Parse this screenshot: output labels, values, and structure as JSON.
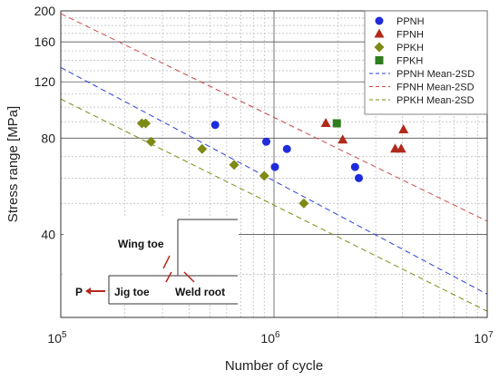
{
  "chart_data": {
    "type": "scatter",
    "x_scale": "log",
    "y_scale": "log",
    "xlim": [
      100000,
      10000000
    ],
    "ylim": [
      22,
      200
    ],
    "xlabel": "Number of cycle",
    "ylabel": "Stress range [MPa]",
    "x_ticks": [
      {
        "value": 100000,
        "base": "10",
        "exp": "5"
      },
      {
        "value": 1000000,
        "base": "10",
        "exp": "6"
      },
      {
        "value": 10000000,
        "base": "10",
        "exp": "7"
      }
    ],
    "y_ticks": [
      {
        "value": 40,
        "label": "40"
      },
      {
        "value": 80,
        "label": "80"
      },
      {
        "value": 120,
        "label": "120"
      },
      {
        "value": 160,
        "label": "160"
      },
      {
        "value": 200,
        "label": "200"
      }
    ],
    "grid": true,
    "legend_position": "top-right",
    "series": [
      {
        "name": "PPNH",
        "marker": "circle",
        "color": "#1f2bdc",
        "x": [
          530000,
          920000,
          1010000,
          1150000,
          2400000,
          2500000
        ],
        "y": [
          88,
          78,
          65,
          74,
          65,
          60
        ]
      },
      {
        "name": "FPNH",
        "marker": "triangle",
        "color": "#b22a1a",
        "x": [
          1750000,
          2100000,
          3700000,
          3950000,
          4050000
        ],
        "y": [
          89,
          79,
          74,
          74,
          85
        ]
      },
      {
        "name": "PPKH",
        "marker": "diamond",
        "color": "#7e8a16",
        "x": [
          240000,
          250000,
          265000,
          460000,
          650000,
          900000,
          1380000
        ],
        "y": [
          89,
          89,
          78,
          74,
          66,
          61,
          50
        ]
      },
      {
        "name": "FPKH",
        "marker": "square",
        "color": "#2e7d1e",
        "x": [
          1970000
        ],
        "y": [
          89
        ]
      }
    ],
    "lines": [
      {
        "name": "PPNH Mean-2SD",
        "color": "#2f3fd8",
        "style": "dashed",
        "x": [
          100000,
          10000000
        ],
        "y": [
          133,
          26
        ]
      },
      {
        "name": "FPNH Mean-2SD",
        "color": "#cc4a4a",
        "style": "dashed",
        "x": [
          100000,
          10000000
        ],
        "y": [
          196,
          44
        ]
      },
      {
        "name": "PPKH Mean-2SD",
        "color": "#7e8a16",
        "style": "dashed",
        "x": [
          100000,
          10000000
        ],
        "y": [
          106,
          23
        ]
      }
    ],
    "inset_labels": {
      "wing_toe": "Wing toe",
      "jig_toe": "Jig toe",
      "weld_root": "Weld root",
      "load": "P"
    }
  }
}
